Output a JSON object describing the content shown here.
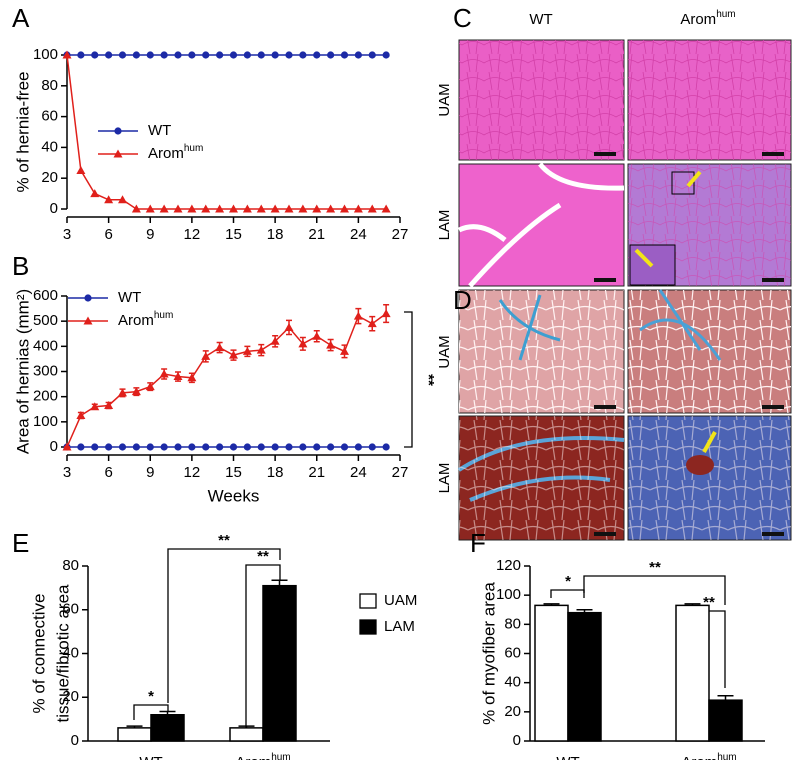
{
  "chart_data": [
    {
      "type": "line",
      "panel": "A",
      "ylabel": "% of hernia-free",
      "x": [
        3,
        4,
        5,
        6,
        7,
        8,
        9,
        10,
        11,
        12,
        13,
        14,
        15,
        16,
        17,
        18,
        19,
        20,
        21,
        22,
        23,
        24,
        25,
        26
      ],
      "xlim": [
        3,
        27
      ],
      "xticks": [
        3,
        6,
        9,
        12,
        15,
        18,
        21,
        24,
        27
      ],
      "ylim": [
        0,
        100
      ],
      "yticks": [
        0,
        20,
        40,
        60,
        80,
        100
      ],
      "series": [
        {
          "name": "WT",
          "color": "#1c2aa6",
          "marker": "circle",
          "values": [
            100,
            100,
            100,
            100,
            100,
            100,
            100,
            100,
            100,
            100,
            100,
            100,
            100,
            100,
            100,
            100,
            100,
            100,
            100,
            100,
            100,
            100,
            100,
            100
          ]
        },
        {
          "name": "Arom",
          "name_sup": "hum",
          "color": "#e0201b",
          "marker": "triangle",
          "values": [
            100,
            25,
            10,
            6,
            6,
            0,
            0,
            0,
            0,
            0,
            0,
            0,
            0,
            0,
            0,
            0,
            0,
            0,
            0,
            0,
            0,
            0,
            0,
            0
          ]
        }
      ]
    },
    {
      "type": "line",
      "panel": "B",
      "xlabel": "Weeks",
      "ylabel": "Area of hernias (mm²)",
      "annotations": [
        "**"
      ],
      "x": [
        3,
        4,
        5,
        6,
        7,
        8,
        9,
        10,
        11,
        12,
        13,
        14,
        15,
        16,
        17,
        18,
        19,
        20,
        21,
        22,
        23,
        24,
        25,
        26
      ],
      "xlim": [
        3,
        27
      ],
      "xticks": [
        3,
        6,
        9,
        12,
        15,
        18,
        21,
        24,
        27
      ],
      "ylim": [
        0,
        600
      ],
      "yticks": [
        0,
        100,
        200,
        300,
        400,
        500,
        600
      ],
      "series": [
        {
          "name": "WT",
          "color": "#1c2aa6",
          "marker": "circle",
          "values": [
            0,
            0,
            0,
            0,
            0,
            0,
            0,
            0,
            0,
            0,
            0,
            0,
            0,
            0,
            0,
            0,
            0,
            0,
            0,
            0,
            0,
            0,
            0,
            0
          ]
        },
        {
          "name": "Arom",
          "name_sup": "hum",
          "color": "#e0201b",
          "marker": "triangle",
          "values": [
            0,
            125,
            160,
            165,
            215,
            220,
            240,
            290,
            280,
            275,
            360,
            395,
            365,
            380,
            385,
            420,
            475,
            410,
            440,
            405,
            380,
            520,
            490,
            530
          ],
          "errors": [
            0,
            12,
            10,
            12,
            15,
            15,
            15,
            20,
            18,
            18,
            22,
            20,
            20,
            20,
            22,
            22,
            28,
            25,
            22,
            22,
            25,
            30,
            28,
            35
          ]
        }
      ]
    },
    {
      "type": "bar",
      "panel": "E",
      "ylabel": [
        "% of connective",
        "tissue/fibrotic area"
      ],
      "legend": true,
      "annotations": [
        "*",
        "**",
        "**"
      ],
      "categories": [
        {
          "label": "WT"
        },
        {
          "label": "Arom",
          "sup": "hum"
        }
      ],
      "ylim": [
        0,
        80
      ],
      "yticks": [
        0,
        20,
        40,
        60,
        80
      ],
      "series": [
        {
          "name": "UAM",
          "color": "#ffffff",
          "values": [
            6,
            6
          ],
          "errors": [
            0.8,
            0.8
          ]
        },
        {
          "name": "LAM",
          "color": "#000000",
          "values": [
            12,
            71
          ],
          "errors": [
            1.5,
            2.5
          ]
        }
      ]
    },
    {
      "type": "bar",
      "panel": "F",
      "ylabel": [
        "% of myofiber area"
      ],
      "legend": false,
      "annotations": [
        "*",
        "**",
        "**"
      ],
      "categories": [
        {
          "label": "WT"
        },
        {
          "label": "Arom",
          "sup": "hum"
        }
      ],
      "ylim": [
        0,
        120
      ],
      "yticks": [
        0,
        20,
        40,
        60,
        80,
        100,
        120
      ],
      "series": [
        {
          "name": "UAM",
          "color": "#ffffff",
          "values": [
            93,
            93
          ],
          "errors": [
            1,
            1
          ]
        },
        {
          "name": "LAM",
          "color": "#000000",
          "values": [
            88,
            28
          ],
          "errors": [
            2,
            3
          ]
        }
      ]
    }
  ],
  "histology": [
    {
      "panel": "C",
      "columns": [
        {
          "label": "WT"
        },
        {
          "label": "Arom",
          "sup": "hum"
        }
      ],
      "rows": [
        "UAM",
        "LAM"
      ]
    },
    {
      "panel": "D",
      "rows": [
        "UAM",
        "LAM"
      ]
    }
  ]
}
